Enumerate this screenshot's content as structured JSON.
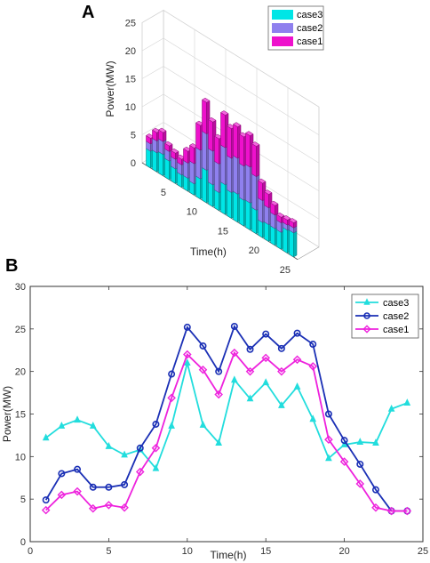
{
  "panels": {
    "a": "A",
    "b": "B"
  },
  "chart_data": [
    {
      "type": "bar",
      "subtype": "3d-bar",
      "panel": "A",
      "xlabel": "Time(h)",
      "ylabel": "Power(MW)",
      "xticks": [
        "0",
        "5",
        "10",
        "15",
        "20",
        "25"
      ],
      "zticks": [
        "0",
        "5",
        "10",
        "15",
        "20",
        "25"
      ],
      "zlim": [
        0,
        25
      ],
      "legend": [
        "case3",
        "case2",
        "case1"
      ],
      "legend_position": "top-right",
      "colors": {
        "case3": "#00e6e6",
        "case2": "#8f80ee",
        "case1": "#ee11cc"
      },
      "categories": [
        1,
        2,
        3,
        4,
        5,
        6,
        7,
        8,
        9,
        10,
        11,
        12,
        13,
        14,
        15,
        16,
        17,
        18,
        19,
        20,
        21,
        22,
        23,
        24
      ],
      "series": [
        {
          "name": "case3",
          "values": [
            3.0,
            3.4,
            3.8,
            3.3,
            2.6,
            2.2,
            2.3,
            2.0,
            3.6,
            5.8,
            3.9,
            3.2,
            5.3,
            4.6,
            5.0,
            4.6,
            4.8,
            4.2,
            2.7,
            3.0,
            3.0,
            3.0,
            4.1,
            4.3
          ]
        },
        {
          "name": "case2",
          "values": [
            1.3,
            2.1,
            2.3,
            1.7,
            1.7,
            1.8,
            2.7,
            3.6,
            5.1,
            6.5,
            6.0,
            5.1,
            6.6,
            6.1,
            6.4,
            6.1,
            6.4,
            6.0,
            3.9,
            3.0,
            2.4,
            1.7,
            0.9,
            0.9
          ]
        },
        {
          "name": "case1",
          "values": [
            1.0,
            1.5,
            1.6,
            1.0,
            1.1,
            1.0,
            2.1,
            2.8,
            4.4,
            5.6,
            5.2,
            4.5,
            5.8,
            5.3,
            5.6,
            5.2,
            5.6,
            5.4,
            3.1,
            2.4,
            1.7,
            1.0,
            0.9,
            0.9
          ]
        }
      ]
    },
    {
      "type": "line",
      "panel": "B",
      "xlabel": "Time(h)",
      "ylabel": "Power(MW)",
      "xlim": [
        0,
        25
      ],
      "ylim": [
        0,
        30
      ],
      "xticks": [
        0,
        5,
        10,
        15,
        20,
        25
      ],
      "yticks": [
        0,
        5,
        10,
        15,
        20,
        25,
        30
      ],
      "grid": false,
      "legend_position": "top-right",
      "x": [
        1,
        2,
        3,
        4,
        5,
        6,
        7,
        8,
        9,
        10,
        11,
        12,
        13,
        14,
        15,
        16,
        17,
        18,
        19,
        20,
        21,
        22,
        23,
        24
      ],
      "series": [
        {
          "name": "case3",
          "color": "#22dddd",
          "marker": "triangle",
          "values": [
            12.2,
            13.6,
            14.3,
            13.6,
            11.2,
            10.2,
            10.8,
            8.6,
            13.6,
            21.0,
            13.7,
            11.6,
            19.0,
            16.8,
            18.7,
            16.0,
            18.2,
            14.4,
            9.8,
            11.4,
            11.7,
            11.6,
            15.6,
            16.3
          ]
        },
        {
          "name": "case2",
          "color": "#1a2fb5",
          "marker": "circle",
          "values": [
            4.9,
            8.0,
            8.5,
            6.4,
            6.4,
            6.7,
            11.0,
            13.8,
            19.7,
            25.2,
            23.0,
            20.0,
            25.3,
            22.6,
            24.4,
            22.7,
            24.5,
            23.2,
            15.0,
            11.9,
            9.1,
            6.1,
            3.6,
            3.6
          ]
        },
        {
          "name": "case1",
          "color": "#ee22dd",
          "marker": "diamond",
          "values": [
            3.7,
            5.5,
            5.9,
            3.9,
            4.3,
            4.0,
            8.2,
            11.0,
            16.9,
            22.0,
            20.2,
            17.3,
            22.2,
            20.0,
            21.6,
            20.0,
            21.4,
            20.6,
            12.0,
            9.4,
            6.8,
            4.0,
            3.6,
            3.6
          ]
        }
      ]
    }
  ]
}
